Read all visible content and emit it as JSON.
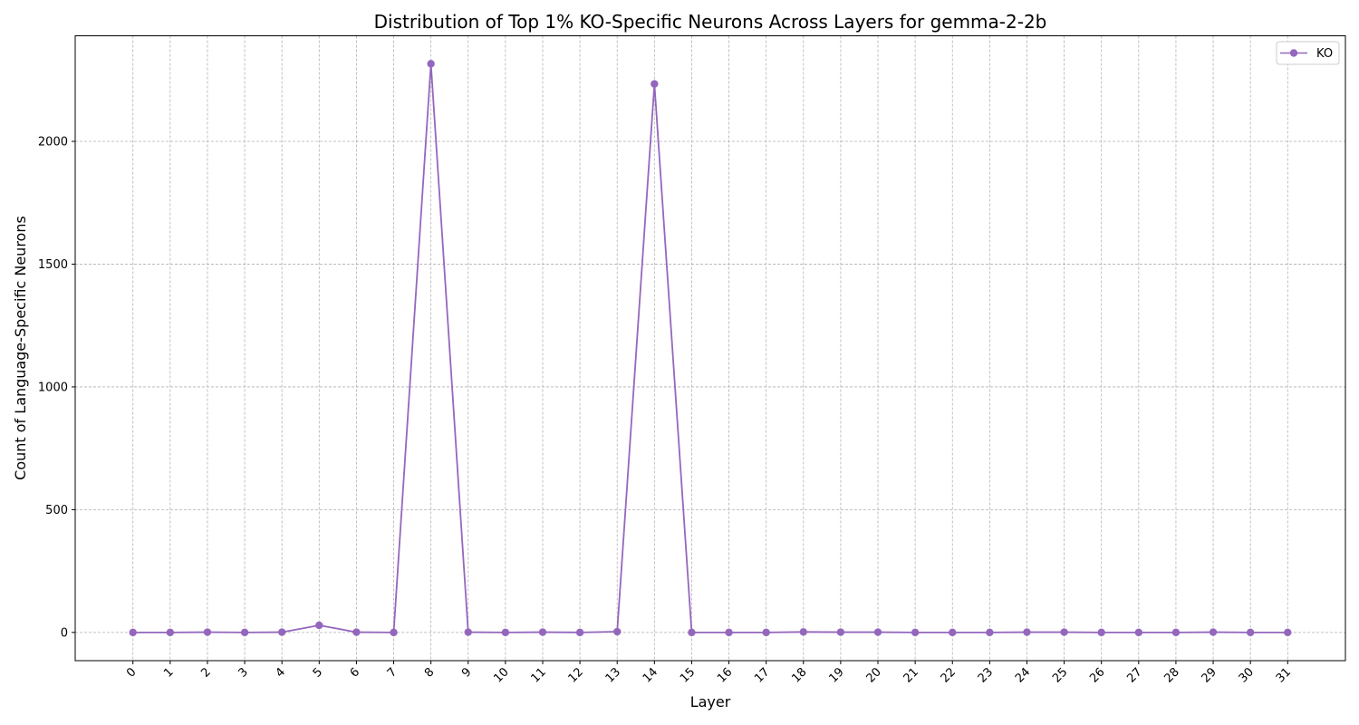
{
  "chart_data": {
    "type": "line",
    "title": "Distribution of Top 1% KO-Specific Neurons Across Layers for gemma-2-2b",
    "xlabel": "Layer",
    "ylabel": "Count of Language-Specific Neurons",
    "x": [
      0,
      1,
      2,
      3,
      4,
      5,
      6,
      7,
      8,
      9,
      10,
      11,
      12,
      13,
      14,
      15,
      16,
      17,
      18,
      19,
      20,
      21,
      22,
      23,
      24,
      25,
      26,
      27,
      28,
      29,
      30,
      31
    ],
    "x_tick_labels": [
      "0",
      "1",
      "2",
      "3",
      "4",
      "5",
      "6",
      "7",
      "8",
      "9",
      "10",
      "11",
      "12",
      "13",
      "14",
      "15",
      "16",
      "17",
      "18",
      "19",
      "20",
      "21",
      "22",
      "23",
      "24",
      "25",
      "26",
      "27",
      "28",
      "29",
      "30",
      "31"
    ],
    "y_ticks": [
      0,
      500,
      1000,
      1500,
      2000
    ],
    "y_tick_labels": [
      "0",
      "500",
      "1000",
      "1500",
      "2000"
    ],
    "xlim": [
      -1.55,
      32.55
    ],
    "ylim": [
      -115,
      2430
    ],
    "grid": true,
    "legend_position": "top-right",
    "series": [
      {
        "name": "KO",
        "color": "#9467bd",
        "marker": "circle",
        "values": [
          0,
          0,
          1,
          0,
          1,
          29,
          1,
          0,
          2316,
          1,
          0,
          1,
          0,
          3,
          2234,
          0,
          0,
          0,
          2,
          1,
          1,
          0,
          0,
          0,
          1,
          1,
          0,
          0,
          0,
          1,
          0,
          0
        ]
      }
    ]
  }
}
